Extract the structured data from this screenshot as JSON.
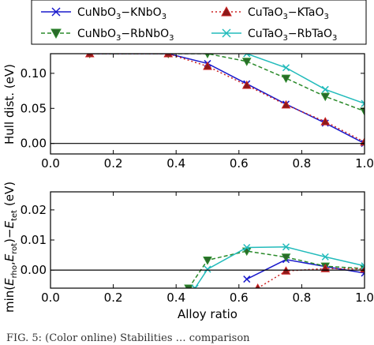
{
  "chart_data": [
    {
      "type": "line",
      "ylabel": "Hull dist. (eV)",
      "xlabel": "",
      "xlim": [
        0.0,
        1.0
      ],
      "ylim": [
        -0.015,
        0.128
      ],
      "xticks": [
        "0.0",
        "0.2",
        "0.4",
        "0.6",
        "0.8",
        "1.0"
      ],
      "yticks": [
        "0.00",
        "0.05",
        "0.10"
      ],
      "grid": false,
      "series": [
        {
          "name": "CuNbO3-KNbO3",
          "color": "#1a1acc",
          "style": "solid",
          "marker": "x",
          "x": [
            0.125,
            0.375,
            0.5,
            0.625,
            0.75,
            0.875,
            1.0
          ],
          "y": [
            0.128,
            0.128,
            0.114,
            0.085,
            0.056,
            0.029,
            0.0
          ]
        },
        {
          "name": "CuNbO3-RbNbO3",
          "color": "#2a8a2a",
          "style": "dashed",
          "marker": "triangle-down",
          "x": [
            0.125,
            0.375,
            0.5,
            0.625,
            0.75,
            0.875,
            1.0
          ],
          "y": [
            0.128,
            0.128,
            0.128,
            0.117,
            0.093,
            0.067,
            0.046
          ]
        },
        {
          "name": "CuTaO3-KTaO3",
          "color": "#cc2222",
          "style": "dotted",
          "marker": "triangle-up",
          "x": [
            0.125,
            0.375,
            0.5,
            0.625,
            0.75,
            0.875,
            1.0
          ],
          "y": [
            0.128,
            0.128,
            0.11,
            0.083,
            0.055,
            0.031,
            0.002
          ]
        },
        {
          "name": "CuTaO3-RbTaO3",
          "color": "#22bbbb",
          "style": "solid",
          "marker": "x",
          "x": [
            0.625,
            0.75,
            0.875,
            1.0
          ],
          "y": [
            0.128,
            0.108,
            0.077,
            0.057
          ]
        }
      ]
    },
    {
      "type": "line",
      "ylabel": "min(E_rho, E_rot) - E_tet (eV)",
      "xlabel": "Alloy ratio",
      "xlim": [
        0.0,
        1.0
      ],
      "ylim": [
        -0.006,
        0.026
      ],
      "xticks": [
        "0.0",
        "0.2",
        "0.4",
        "0.6",
        "0.8",
        "1.0"
      ],
      "yticks": [
        "0.00",
        "0.01",
        "0.02"
      ],
      "grid": false,
      "series": [
        {
          "name": "CuNbO3-KNbO3",
          "color": "#1a1acc",
          "style": "solid",
          "marker": "x",
          "x": [
            0.625,
            0.75,
            0.875,
            1.0
          ],
          "y": [
            -0.003,
            0.0035,
            0.0012,
            -0.001
          ]
        },
        {
          "name": "CuNbO3-RbNbO3",
          "color": "#2a8a2a",
          "style": "dashed",
          "marker": "triangle-down",
          "x": [
            0.44,
            0.5,
            0.625,
            0.75,
            0.875,
            1.0
          ],
          "y": [
            -0.006,
            0.0033,
            0.0063,
            0.0043,
            0.0013,
            0.0005
          ]
        },
        {
          "name": "CuTaO3-KTaO3",
          "color": "#cc2222",
          "style": "dotted",
          "marker": "triangle-up",
          "x": [
            0.66,
            0.75,
            0.875,
            1.0
          ],
          "y": [
            -0.006,
            -0.0003,
            0.0005,
            0.0004
          ]
        },
        {
          "name": "CuTaO3-RbTaO3",
          "color": "#22bbbb",
          "style": "solid",
          "marker": "x",
          "x": [
            0.46,
            0.5,
            0.625,
            0.75,
            0.875,
            1.0
          ],
          "y": [
            -0.006,
            0.0003,
            0.0075,
            0.0077,
            0.0044,
            0.0014
          ]
        }
      ]
    }
  ],
  "legend": {
    "placement": "top",
    "entries": [
      {
        "base": "CuNbO",
        "sub": "3",
        "rest": "−KNbO",
        "sub2": "3"
      },
      {
        "base": "CuTaO",
        "sub": "3",
        "rest": "−KTaO",
        "sub2": "3"
      },
      {
        "base": "CuNbO",
        "sub": "3",
        "rest": "−RbNbO",
        "sub2": "3"
      },
      {
        "base": "CuTaO",
        "sub": "3",
        "rest": "−RbTaO",
        "sub2": "3"
      }
    ]
  },
  "labels": {
    "top_ylabel": "Hull dist. (eV)",
    "bottom_ylabel_parts": [
      "min(",
      "E",
      "rho",
      ",",
      "E",
      "rot",
      ")−",
      "E",
      "tet",
      " (eV)"
    ],
    "xlabel": "Alloy ratio",
    "caption": "FIG. 5: (Color online) Stabilities … comparison"
  }
}
